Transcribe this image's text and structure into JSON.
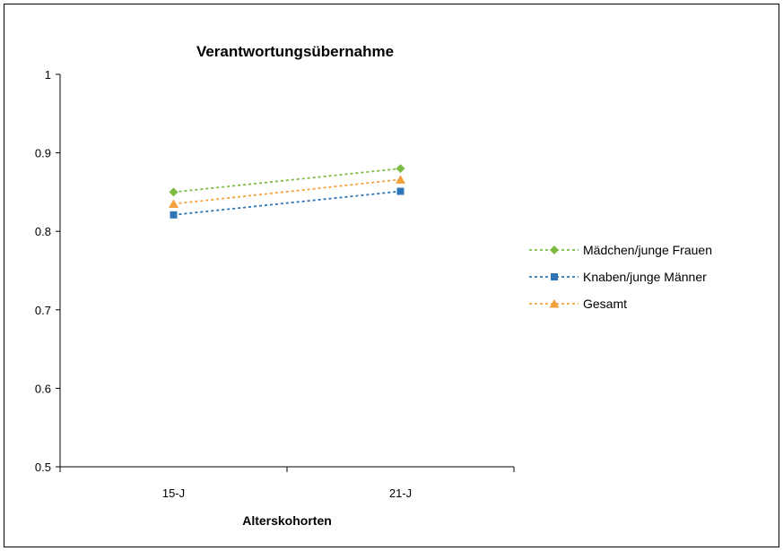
{
  "chart_data": {
    "type": "line",
    "title": "Verantwortungsübernahme",
    "xlabel": "Alterskohorten",
    "ylabel": "",
    "categories": [
      "15-J",
      "21-J"
    ],
    "ylim": [
      0.5,
      1
    ],
    "yticks": [
      0.5,
      0.6,
      0.7,
      0.8,
      0.9,
      1
    ],
    "ytick_labels": [
      "0.5",
      "0.6",
      "0.7",
      "0.8",
      "0.9",
      "1"
    ],
    "grid": false,
    "legend_position": "right",
    "series": [
      {
        "name": "Mädchen/junge Frauen",
        "values": [
          0.85,
          0.88
        ],
        "color": "#7dbb42",
        "marker": "diamond"
      },
      {
        "name": "Knaben/junge Männer",
        "values": [
          0.821,
          0.851
        ],
        "color": "#2e75b6",
        "marker": "square"
      },
      {
        "name": "Gesamt",
        "values": [
          0.835,
          0.866
        ],
        "color": "#f5a03c",
        "marker": "triangle"
      }
    ]
  }
}
